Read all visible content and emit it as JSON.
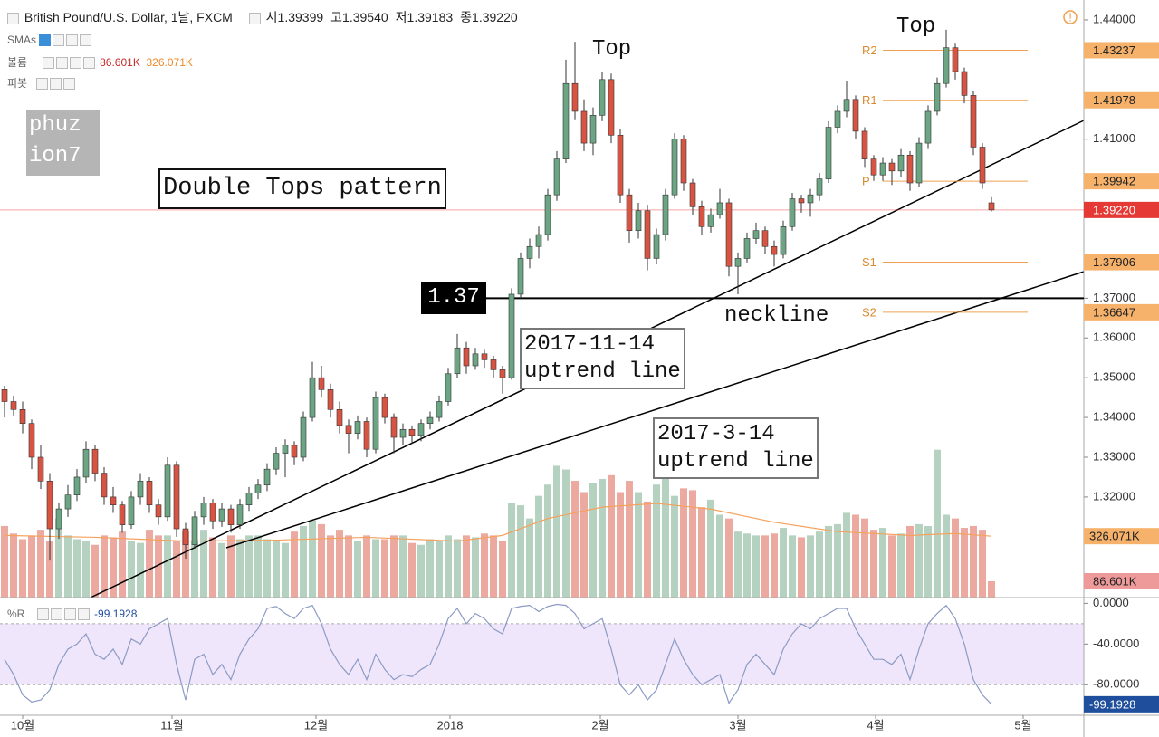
{
  "header": {
    "symbol": "British Pound/U.S. Dollar, 1날, FXCM",
    "quote": [
      [
        "시",
        "1.39399"
      ],
      [
        "고",
        "1.39540"
      ],
      [
        "저",
        "1.39183"
      ],
      [
        "종",
        "1.39220"
      ]
    ],
    "studies": [
      "SMAs",
      "볼륨",
      "피봇"
    ]
  },
  "annotations": {
    "pattern": "Double Tops pattern",
    "top_left": "Top",
    "top_right": "Top",
    "neckline": "neckline",
    "neckline_price": 1.37,
    "trend1": [
      "2017-11-14",
      "uptrend line"
    ],
    "trend2": [
      "2017-3-14",
      "uptrend line"
    ],
    "watermark": [
      "phuz",
      "ion7"
    ]
  },
  "chart_data": {
    "type": "candlestick",
    "ohlc": [
      [
        1.347,
        1.348,
        1.34,
        1.344
      ],
      [
        1.344,
        1.3455,
        1.3405,
        1.342
      ],
      [
        1.342,
        1.344,
        1.336,
        1.3385
      ],
      [
        1.3385,
        1.3395,
        1.327,
        1.33
      ],
      [
        1.33,
        1.333,
        1.322,
        1.324
      ],
      [
        1.324,
        1.326,
        1.304,
        1.312
      ],
      [
        1.312,
        1.3185,
        1.3095,
        1.317
      ],
      [
        1.317,
        1.323,
        1.315,
        1.3205
      ],
      [
        1.3205,
        1.327,
        1.319,
        1.325
      ],
      [
        1.325,
        1.334,
        1.3235,
        1.332
      ],
      [
        1.332,
        1.333,
        1.324,
        1.326
      ],
      [
        1.326,
        1.3275,
        1.318,
        1.32
      ],
      [
        1.32,
        1.3225,
        1.316,
        1.318
      ],
      [
        1.318,
        1.319,
        1.311,
        1.313
      ],
      [
        1.313,
        1.3215,
        1.312,
        1.32
      ],
      [
        1.32,
        1.326,
        1.318,
        1.324
      ],
      [
        1.324,
        1.325,
        1.316,
        1.318
      ],
      [
        1.318,
        1.3195,
        1.313,
        1.315
      ],
      [
        1.315,
        1.33,
        1.314,
        1.328
      ],
      [
        1.328,
        1.329,
        1.31,
        1.312
      ],
      [
        1.312,
        1.3135,
        1.3045,
        1.308
      ],
      [
        1.308,
        1.3165,
        1.307,
        1.315
      ],
      [
        1.315,
        1.32,
        1.313,
        1.3185
      ],
      [
        1.3185,
        1.3195,
        1.312,
        1.314
      ],
      [
        1.314,
        1.3185,
        1.3125,
        1.317
      ],
      [
        1.317,
        1.318,
        1.311,
        1.313
      ],
      [
        1.313,
        1.3195,
        1.312,
        1.318
      ],
      [
        1.318,
        1.3225,
        1.3165,
        1.321
      ],
      [
        1.321,
        1.3245,
        1.3195,
        1.323
      ],
      [
        1.323,
        1.3285,
        1.3215,
        1.327
      ],
      [
        1.327,
        1.3325,
        1.3255,
        1.331
      ],
      [
        1.331,
        1.3345,
        1.325,
        1.333
      ],
      [
        1.333,
        1.334,
        1.328,
        1.33
      ],
      [
        1.33,
        1.3415,
        1.329,
        1.34
      ],
      [
        1.34,
        1.354,
        1.339,
        1.35
      ],
      [
        1.35,
        1.353,
        1.345,
        1.347
      ],
      [
        1.347,
        1.3485,
        1.34,
        1.342
      ],
      [
        1.342,
        1.344,
        1.336,
        1.338
      ],
      [
        1.338,
        1.3395,
        1.331,
        1.336
      ],
      [
        1.336,
        1.3405,
        1.3345,
        1.339
      ],
      [
        1.339,
        1.34,
        1.33,
        1.332
      ],
      [
        1.332,
        1.3465,
        1.331,
        1.345
      ],
      [
        1.345,
        1.346,
        1.3385,
        1.34
      ],
      [
        1.34,
        1.341,
        1.331,
        1.335
      ],
      [
        1.335,
        1.3385,
        1.333,
        1.337
      ],
      [
        1.337,
        1.338,
        1.3335,
        1.3355
      ],
      [
        1.3355,
        1.3395,
        1.334,
        1.3385
      ],
      [
        1.3385,
        1.3415,
        1.337,
        1.34
      ],
      [
        1.34,
        1.3455,
        1.339,
        1.344
      ],
      [
        1.344,
        1.3525,
        1.343,
        1.351
      ],
      [
        1.351,
        1.361,
        1.35,
        1.3575
      ],
      [
        1.3575,
        1.359,
        1.351,
        1.353
      ],
      [
        1.353,
        1.3575,
        1.352,
        1.356
      ],
      [
        1.356,
        1.357,
        1.3525,
        1.3545
      ],
      [
        1.3545,
        1.3555,
        1.35,
        1.352
      ],
      [
        1.352,
        1.353,
        1.346,
        1.35
      ],
      [
        1.35,
        1.3725,
        1.3495,
        1.371
      ],
      [
        1.371,
        1.3815,
        1.37,
        1.38
      ],
      [
        1.38,
        1.385,
        1.3775,
        1.383
      ],
      [
        1.383,
        1.388,
        1.38,
        1.386
      ],
      [
        1.386,
        1.3975,
        1.3845,
        1.396
      ],
      [
        1.396,
        1.407,
        1.3945,
        1.405
      ],
      [
        1.405,
        1.43,
        1.404,
        1.424
      ],
      [
        1.424,
        1.4345,
        1.415,
        1.417
      ],
      [
        1.417,
        1.42,
        1.407,
        1.409
      ],
      [
        1.409,
        1.418,
        1.406,
        1.416
      ],
      [
        1.416,
        1.427,
        1.4145,
        1.425
      ],
      [
        1.425,
        1.4265,
        1.409,
        1.411
      ],
      [
        1.411,
        1.4125,
        1.394,
        1.396
      ],
      [
        1.396,
        1.3975,
        1.384,
        1.387
      ],
      [
        1.387,
        1.394,
        1.385,
        1.392
      ],
      [
        1.392,
        1.3935,
        1.377,
        1.38
      ],
      [
        1.38,
        1.3875,
        1.3785,
        1.386
      ],
      [
        1.386,
        1.3975,
        1.3845,
        1.396
      ],
      [
        1.396,
        1.4115,
        1.395,
        1.41
      ],
      [
        1.41,
        1.411,
        1.397,
        1.399
      ],
      [
        1.399,
        1.4,
        1.391,
        1.393
      ],
      [
        1.393,
        1.3945,
        1.386,
        1.388
      ],
      [
        1.388,
        1.3925,
        1.3865,
        1.391
      ],
      [
        1.391,
        1.3975,
        1.39,
        1.394
      ],
      [
        1.394,
        1.395,
        1.3755,
        1.378
      ],
      [
        1.378,
        1.3815,
        1.371,
        1.38
      ],
      [
        1.38,
        1.3865,
        1.379,
        1.385
      ],
      [
        1.385,
        1.389,
        1.3835,
        1.387
      ],
      [
        1.387,
        1.388,
        1.381,
        1.383
      ],
      [
        1.383,
        1.3845,
        1.378,
        1.381
      ],
      [
        1.381,
        1.3895,
        1.38,
        1.388
      ],
      [
        1.388,
        1.3965,
        1.387,
        1.395
      ],
      [
        1.395,
        1.396,
        1.3915,
        1.394
      ],
      [
        1.394,
        1.3975,
        1.3905,
        1.396
      ],
      [
        1.396,
        1.4015,
        1.3945,
        1.4
      ],
      [
        1.4,
        1.4145,
        1.399,
        1.413
      ],
      [
        1.413,
        1.4185,
        1.4115,
        1.417
      ],
      [
        1.417,
        1.4245,
        1.4155,
        1.42
      ],
      [
        1.42,
        1.421,
        1.41,
        1.412
      ],
      [
        1.412,
        1.413,
        1.403,
        1.405
      ],
      [
        1.405,
        1.406,
        1.3995,
        1.401
      ],
      [
        1.401,
        1.4055,
        1.3995,
        1.404
      ],
      [
        1.404,
        1.405,
        1.3985,
        1.402
      ],
      [
        1.402,
        1.4075,
        1.4005,
        1.406
      ],
      [
        1.406,
        1.407,
        1.397,
        1.399
      ],
      [
        1.399,
        1.4105,
        1.398,
        1.409
      ],
      [
        1.409,
        1.4185,
        1.4075,
        1.417
      ],
      [
        1.417,
        1.4255,
        1.416,
        1.424
      ],
      [
        1.424,
        1.4375,
        1.423,
        1.433
      ],
      [
        1.433,
        1.434,
        1.425,
        1.427
      ],
      [
        1.427,
        1.428,
        1.419,
        1.421
      ],
      [
        1.421,
        1.422,
        1.406,
        1.408
      ],
      [
        1.408,
        1.409,
        1.3975,
        1.399
      ],
      [
        1.39399,
        1.3954,
        1.39183,
        1.3922
      ]
    ],
    "xlim": [
      -0.5,
      119.2
    ],
    "xticks": [
      {
        "value": 2,
        "label": "10월"
      },
      {
        "value": 18.5,
        "label": "11월"
      },
      {
        "value": 34.4,
        "label": "12월"
      },
      {
        "value": 49.2,
        "label": "2018"
      },
      {
        "value": 65.8,
        "label": "2월"
      },
      {
        "value": 81,
        "label": "3월"
      },
      {
        "value": 96.2,
        "label": "4월"
      },
      {
        "value": 112.5,
        "label": "5월"
      }
    ],
    "ylim": [
      1.2947,
      1.445
    ],
    "yticks": [
      {
        "value": 1.44,
        "label": "1.44000"
      },
      {
        "value": 1.41,
        "label": "1.41000"
      },
      {
        "value": 1.37,
        "label": "1.37000"
      },
      {
        "value": 1.36,
        "label": "1.36000"
      },
      {
        "value": 1.35,
        "label": "1.35000"
      },
      {
        "value": 1.34,
        "label": "1.34000"
      },
      {
        "value": 1.33,
        "label": "1.33000"
      },
      {
        "value": 1.32,
        "label": "1.32000"
      }
    ],
    "up_color": "#6ba583",
    "down_color": "#d75442",
    "last_price": {
      "value": 1.3922,
      "label": "1.39220",
      "color": "#e53935"
    },
    "pivots": {
      "names": [
        "R2",
        "R1",
        "P",
        "S1",
        "S2"
      ],
      "values": [
        1.43237,
        1.41978,
        1.39942,
        1.37906,
        1.36647
      ],
      "color": "#f0a050"
    },
    "volume": {
      "values": [
        380,
        340,
        310,
        330,
        360,
        300,
        420,
        330,
        310,
        300,
        280,
        330,
        320,
        350,
        300,
        290,
        360,
        330,
        330,
        300,
        350,
        300,
        360,
        320,
        290,
        330,
        310,
        330,
        330,
        310,
        300,
        290,
        350,
        380,
        410,
        390,
        330,
        360,
        330,
        300,
        330,
        310,
        310,
        330,
        330,
        290,
        280,
        310,
        300,
        330,
        310,
        330,
        320,
        340,
        330,
        300,
        500,
        490,
        420,
        540,
        600,
        700,
        680,
        620,
        560,
        610,
        630,
        650,
        560,
        620,
        560,
        510,
        600,
        640,
        540,
        580,
        570,
        480,
        520,
        440,
        420,
        350,
        340,
        330,
        330,
        340,
        370,
        330,
        320,
        330,
        350,
        380,
        390,
        450,
        440,
        420,
        360,
        370,
        330,
        340,
        380,
        390,
        380,
        785,
        440,
        420,
        370,
        380,
        360,
        86.601
      ],
      "ylim": [
        0,
        3173
      ],
      "last_label": "86.601K",
      "ma": {
        "x": [
          0,
          10,
          20,
          30,
          40,
          50,
          55,
          60,
          66,
          72,
          78,
          85,
          92,
          100,
          105,
          109
        ],
        "values": [
          330,
          320,
          300,
          305,
          320,
          300,
          330,
          420,
          480,
          500,
          470,
          400,
          350,
          330,
          340,
          326.071
        ],
        "last_label": "326.071K",
        "color": "#f5a25d"
      }
    },
    "williams_r": {
      "name": "%R",
      "color": "#8c9bc4",
      "ylim": [
        -110,
        3
      ],
      "band": [
        -80,
        -20
      ],
      "yticks": [
        {
          "value": 0,
          "label": "0.0000"
        },
        {
          "value": -40,
          "label": "-40.0000"
        },
        {
          "value": -80,
          "label": "-80.0000"
        }
      ],
      "values": [
        -55,
        -70,
        -90,
        -97,
        -95,
        -85,
        -60,
        -45,
        -40,
        -30,
        -50,
        -55,
        -45,
        -60,
        -35,
        -40,
        -25,
        -20,
        -15,
        -60,
        -95,
        -55,
        -50,
        -70,
        -60,
        -75,
        -50,
        -35,
        -25,
        -5,
        -3,
        -10,
        -15,
        -5,
        -2,
        -20,
        -45,
        -60,
        -70,
        -55,
        -75,
        -50,
        -65,
        -75,
        -70,
        -72,
        -65,
        -60,
        -40,
        -15,
        -5,
        -20,
        -10,
        -15,
        -25,
        -30,
        -5,
        -3,
        -2,
        -8,
        -3,
        -1,
        -2,
        -10,
        -25,
        -20,
        -15,
        -45,
        -80,
        -90,
        -80,
        -95,
        -85,
        -60,
        -35,
        -55,
        -70,
        -80,
        -75,
        -70,
        -98,
        -85,
        -60,
        -50,
        -60,
        -70,
        -45,
        -30,
        -20,
        -25,
        -15,
        -10,
        -5,
        -5,
        -25,
        -40,
        -55,
        -55,
        -60,
        -50,
        -75,
        -45,
        -20,
        -10,
        -2,
        -15,
        -40,
        -75,
        -90,
        -99.1928
      ]
    }
  }
}
